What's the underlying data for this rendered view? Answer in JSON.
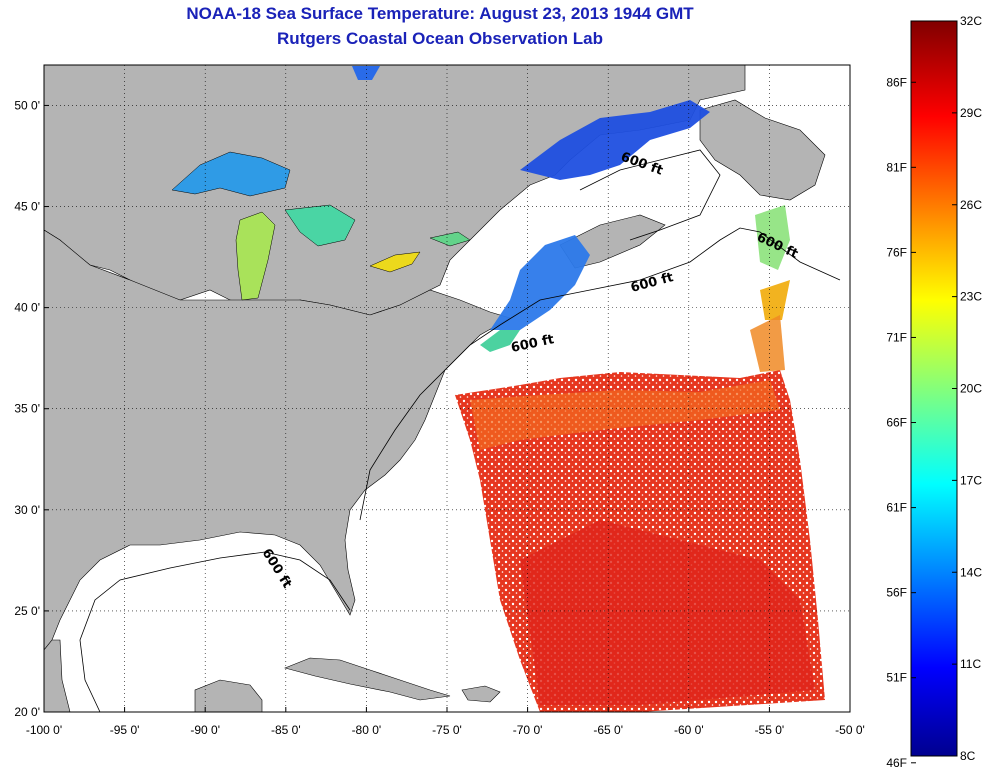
{
  "header": {
    "title": "NOAA-18 Sea Surface Temperature:  August 23, 2013 1944 GMT",
    "subtitle": "Rutgers Coastal Ocean Observation Lab"
  },
  "map": {
    "lon_range": [
      -100,
      -50
    ],
    "lat_range": [
      20,
      52
    ],
    "lon_ticks": [
      {
        "value": -100,
        "label": "-100 0'"
      },
      {
        "value": -95,
        "label": "-95 0'"
      },
      {
        "value": -90,
        "label": "-90 0'"
      },
      {
        "value": -85,
        "label": "-85 0'"
      },
      {
        "value": -80,
        "label": "-80 0'"
      },
      {
        "value": -75,
        "label": "-75 0'"
      },
      {
        "value": -70,
        "label": "-70 0'"
      },
      {
        "value": -65,
        "label": "-65 0'"
      },
      {
        "value": -60,
        "label": "-60 0'"
      },
      {
        "value": -55,
        "label": "-55 0'"
      },
      {
        "value": -50,
        "label": "-50 0'"
      }
    ],
    "lat_ticks": [
      {
        "value": 20,
        "label": "20 0'"
      },
      {
        "value": 25,
        "label": "25 0'"
      },
      {
        "value": 30,
        "label": "30 0'"
      },
      {
        "value": 35,
        "label": "35 0'"
      },
      {
        "value": 40,
        "label": "40 0'"
      },
      {
        "value": 45,
        "label": "45 0'"
      },
      {
        "value": 50,
        "label": "50 0'"
      }
    ],
    "grid": "dotted",
    "colors": {
      "land": "#b4b4b4",
      "no_data": "#ffffff",
      "coastline": "#000000"
    },
    "isobath_labels": [
      "600 ft",
      "600 ft",
      "600 ft",
      "600 ft",
      "600 ft"
    ]
  },
  "colorbar": {
    "min_c": 8,
    "max_c": 32,
    "celsius_ticks": [
      {
        "value": 32,
        "label": "32C"
      },
      {
        "value": 29,
        "label": "29C"
      },
      {
        "value": 26,
        "label": "26C"
      },
      {
        "value": 23,
        "label": "23C"
      },
      {
        "value": 20,
        "label": "20C"
      },
      {
        "value": 17,
        "label": "17C"
      },
      {
        "value": 14,
        "label": "14C"
      },
      {
        "value": 11,
        "label": "11C"
      },
      {
        "value": 8,
        "label": "8C"
      }
    ],
    "fahrenheit_ticks": [
      {
        "value": 86,
        "label": "86F"
      },
      {
        "value": 81,
        "label": "81F"
      },
      {
        "value": 76,
        "label": "76F"
      },
      {
        "value": 71,
        "label": "71F"
      },
      {
        "value": 66,
        "label": "66F"
      },
      {
        "value": 61,
        "label": "61F"
      },
      {
        "value": 56,
        "label": "56F"
      },
      {
        "value": 51,
        "label": "51F"
      },
      {
        "value": 46,
        "label": "46F"
      }
    ],
    "colormap": [
      "#00008f",
      "#0000ff",
      "#00ffff",
      "#ffff00",
      "#ff0000",
      "#800000"
    ]
  }
}
